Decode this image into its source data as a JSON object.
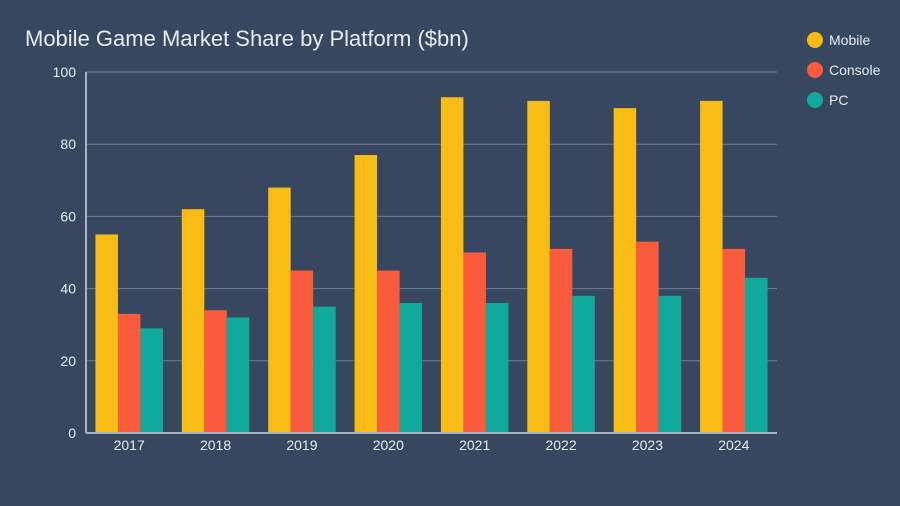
{
  "chart_data": {
    "type": "bar",
    "title": "Mobile Game Market Share by Platform ($bn)",
    "xlabel": "",
    "ylabel": "",
    "ylim": [
      0,
      100
    ],
    "yticks": [
      "0",
      "20",
      "40",
      "60",
      "80",
      "100"
    ],
    "grid": true,
    "legend_position": "top-right",
    "categories": [
      "2017",
      "2018",
      "2019",
      "2020",
      "2021",
      "2022",
      "2023",
      "2024"
    ],
    "series": [
      {
        "name": "Mobile",
        "color": "#f9bc14",
        "values": [
          55,
          62,
          68,
          77,
          93,
          92,
          90,
          92
        ]
      },
      {
        "name": "Console",
        "color": "#f95b3c",
        "values": [
          33,
          34,
          45,
          45,
          50,
          51,
          53,
          51
        ]
      },
      {
        "name": "PC",
        "color": "#10aa9c",
        "values": [
          29,
          32,
          35,
          36,
          36,
          38,
          38,
          43
        ]
      }
    ]
  }
}
